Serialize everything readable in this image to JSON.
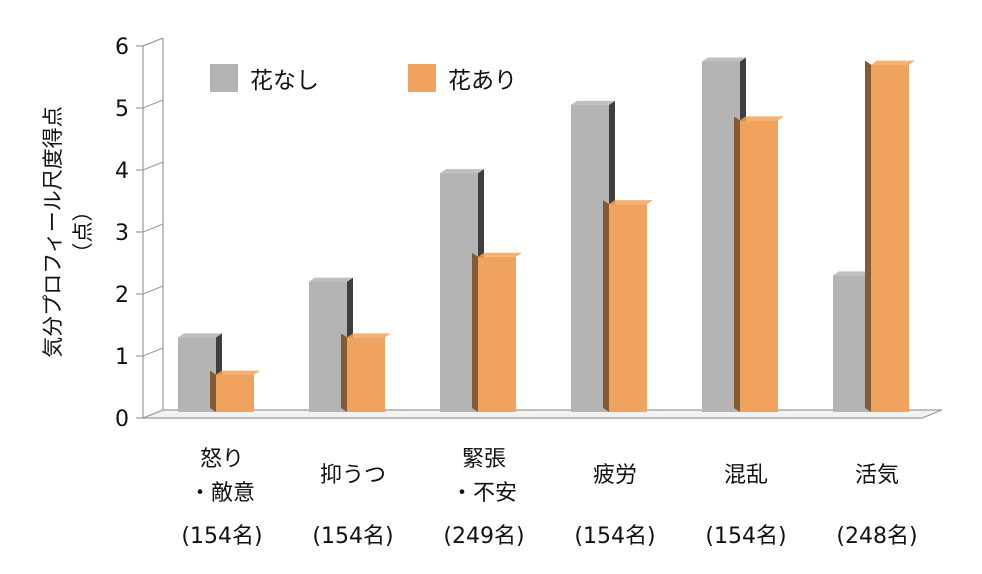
{
  "chart_data": {
    "type": "bar",
    "title": "",
    "ylabel": "気分プロフィール尺度得点",
    "ylabel_unit": "（点）",
    "ylim": [
      0,
      6
    ],
    "yticks": [
      "0",
      "1",
      "2",
      "3",
      "4",
      "5",
      "6"
    ],
    "grid": false,
    "legend_position": "top-left",
    "categories": [
      {
        "line1": "怒り",
        "line2": "・敵意",
        "n": "(154名)"
      },
      {
        "line1": "抑うつ",
        "line2": "",
        "n": "(154名)"
      },
      {
        "line1": "緊張",
        "line2": "・不安",
        "n": "(249名)"
      },
      {
        "line1": "疲労",
        "line2": "",
        "n": "(154名)"
      },
      {
        "line1": "混乱",
        "line2": "",
        "n": "(154名)"
      },
      {
        "line1": "活気",
        "line2": "",
        "n": "(248名)"
      }
    ],
    "series": [
      {
        "name": "花なし",
        "color": "#b4b4b4",
        "values": [
          1.3,
          2.2,
          3.95,
          5.05,
          5.75,
          2.3
        ]
      },
      {
        "name": "花あり",
        "color": "#f0a35e",
        "values": [
          0.7,
          1.3,
          2.6,
          3.45,
          4.8,
          5.7
        ]
      }
    ]
  }
}
